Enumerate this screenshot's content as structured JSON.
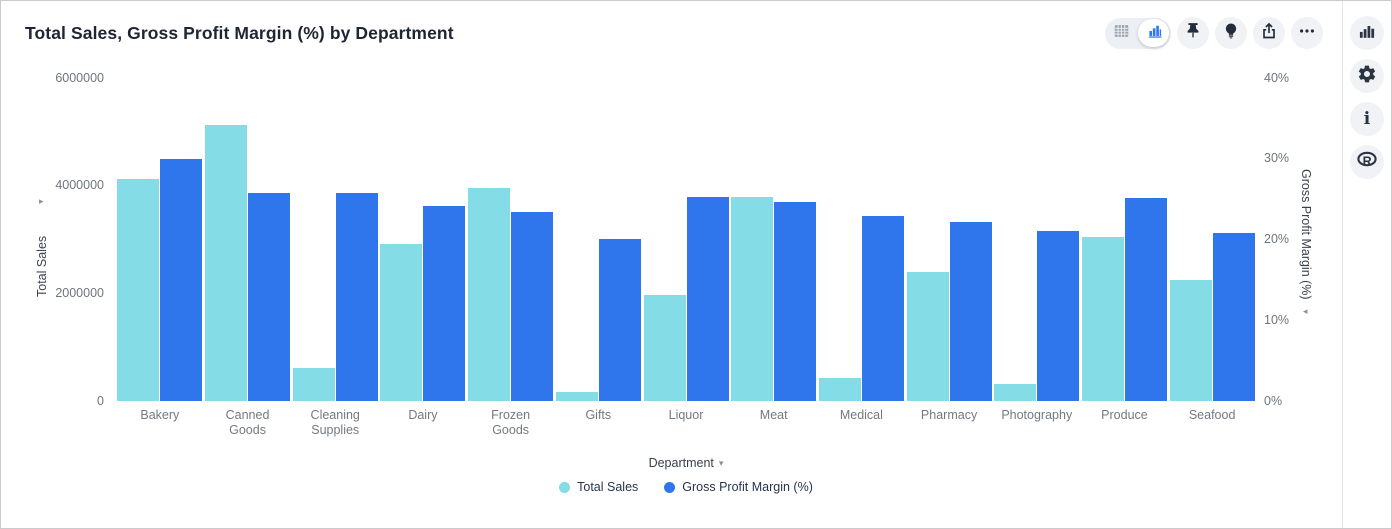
{
  "header": {
    "title": "Total Sales, Gross Profit Margin (%) by Department"
  },
  "toolbar": {
    "view_toggle": {
      "options": [
        "table-view",
        "chart-view"
      ],
      "selected": "chart-view"
    },
    "buttons": [
      "pin",
      "insights",
      "share",
      "more-options"
    ]
  },
  "sidebar": {
    "buttons": [
      "charts",
      "settings",
      "info",
      "r-analytics"
    ]
  },
  "icons": {
    "left_axis_arrow": "▸",
    "right_axis_arrow": "◂",
    "xlabel_arrow": "▾"
  },
  "chart_data": {
    "type": "bar",
    "title": "Total Sales, Gross Profit Margin (%) by Department",
    "categories": [
      "Bakery",
      "Canned Goods",
      "Cleaning Supplies",
      "Dairy",
      "Frozen Goods",
      "Gifts",
      "Liquor",
      "Meat",
      "Medical",
      "Pharmacy",
      "Photography",
      "Produce",
      "Seafood"
    ],
    "series": [
      {
        "name": "Total Sales",
        "axis": "left",
        "color": "#84dce6",
        "values": [
          4130000,
          5130000,
          620000,
          2910000,
          3960000,
          170000,
          1970000,
          3790000,
          430000,
          2400000,
          320000,
          3050000,
          2250000
        ]
      },
      {
        "name": "Gross Profit Margin (%)",
        "axis": "right",
        "color": "#2f76ec",
        "values": [
          30.0,
          25.8,
          25.7,
          24.1,
          23.4,
          20.1,
          25.3,
          24.7,
          22.9,
          22.2,
          21.0,
          25.2,
          20.8
        ]
      }
    ],
    "xlabel": "Department",
    "y_left": {
      "label": "Total Sales",
      "max": 6000000,
      "ticks": [
        "0",
        "2000000",
        "4000000",
        "6000000"
      ]
    },
    "y_right": {
      "label": "Gross Profit Margin (%)",
      "max": 40,
      "ticks": [
        "0%",
        "10%",
        "20%",
        "30%",
        "40%"
      ]
    },
    "grid": false,
    "legend_position": "bottom"
  }
}
